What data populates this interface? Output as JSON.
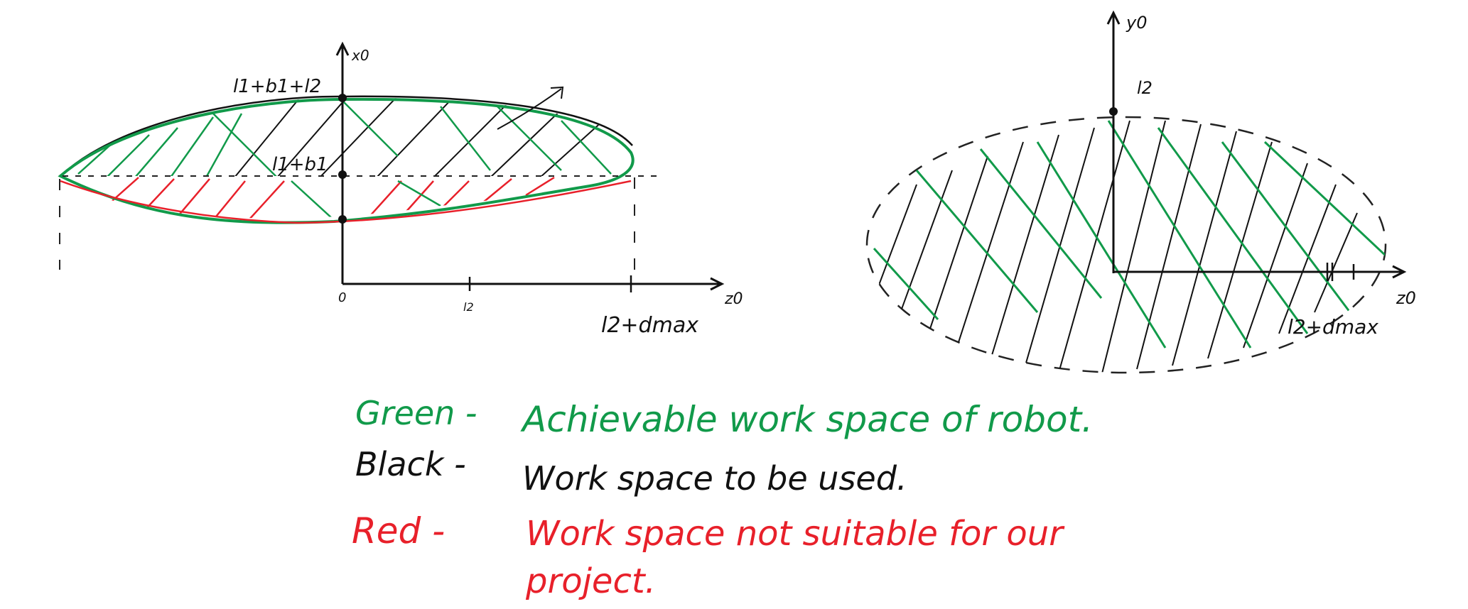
{
  "colors": {
    "green": "#119a4a",
    "black": "#111111",
    "red": "#e8202a",
    "dashed": "#222222"
  },
  "left_diagram": {
    "axis_vertical_label": "x0",
    "axis_horizontal_label": "z0",
    "label_top": "l1+b1+l2",
    "label_mid": "l1+b1",
    "label_origin": "0",
    "label_tick": "l2",
    "label_max": "l2+dmax"
  },
  "right_diagram": {
    "axis_vertical_label": "y0",
    "axis_horizontal_label": "z0",
    "label_top": "l2",
    "label_max": "l2+dmax"
  },
  "legend": {
    "green_key": "Green -",
    "green_text": "Achievable work space of robot.",
    "black_key": "Black -",
    "black_text": "Work space to be used.",
    "red_key": "Red -",
    "red_text_line1": "Work space not suitable for our",
    "red_text_line2": "project."
  }
}
